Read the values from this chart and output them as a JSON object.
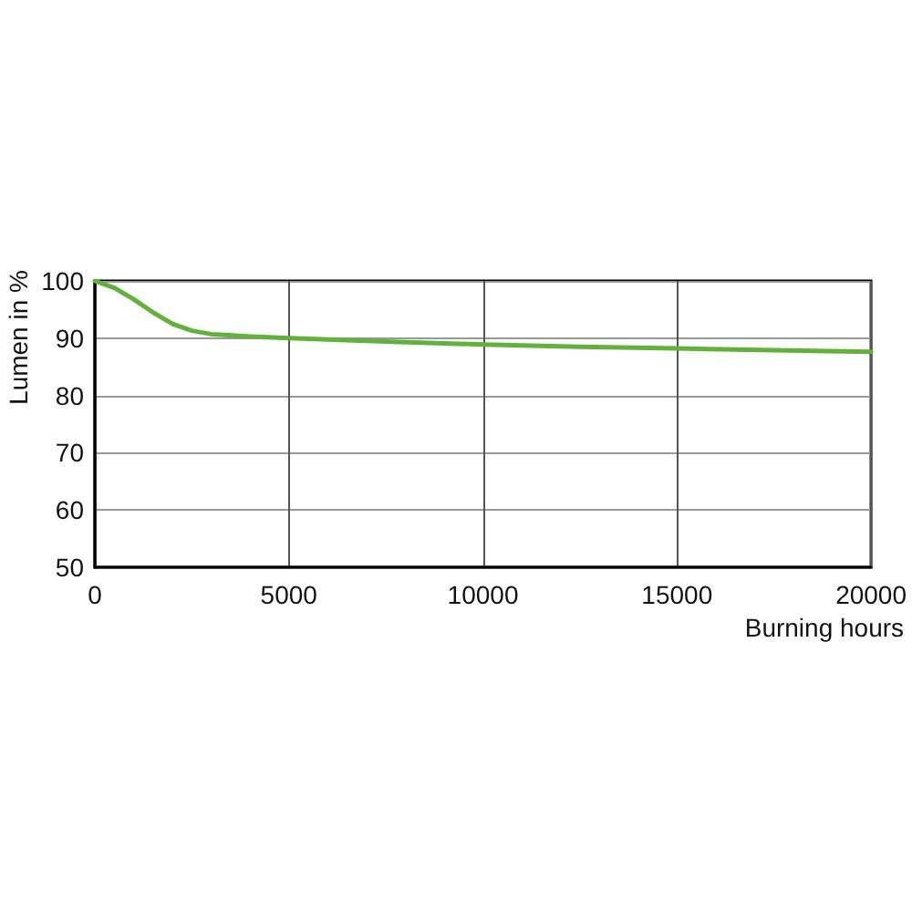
{
  "chart_data": {
    "type": "line",
    "xlabel": "Burning hours",
    "ylabel": "Lumen in %",
    "x": [
      0,
      500,
      1000,
      1500,
      2000,
      2500,
      3000,
      4000,
      5000,
      7500,
      10000,
      12500,
      15000,
      17500,
      20000
    ],
    "values": [
      100,
      98.8,
      96.8,
      94.5,
      92.5,
      91.3,
      90.7,
      90.3,
      90.0,
      89.4,
      88.9,
      88.5,
      88.2,
      87.9,
      87.6
    ],
    "color": "#62b13a",
    "xlim": [
      0,
      20000
    ],
    "xticks": [
      0,
      5000,
      10000,
      15000,
      20000
    ],
    "ylim": [
      50,
      100
    ],
    "yticks": [
      50,
      60,
      70,
      80,
      90,
      100
    ],
    "grid": true,
    "marker": "none"
  }
}
